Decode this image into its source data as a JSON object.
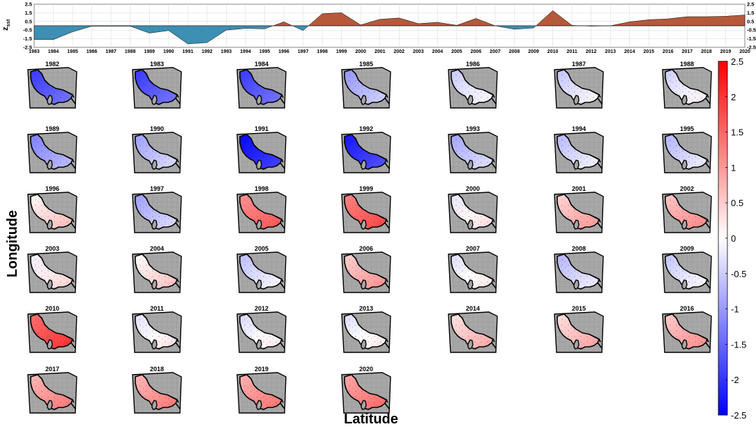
{
  "chart_data": [
    {
      "type": "area",
      "ylabel": "z",
      "ylabel_sub": "sst",
      "ylim": [
        -2.5,
        2.5
      ],
      "yticks": [
        2.5,
        1.5,
        0.5,
        -0.5,
        -1.5,
        -2.5
      ],
      "yticks_right": [
        2.5,
        1.5,
        0.5,
        -0.5,
        -1.5,
        -2.5
      ],
      "x_range": [
        1983,
        2020
      ],
      "x_ticks": [
        1983,
        1984,
        1985,
        1986,
        1987,
        1988,
        1989,
        1990,
        1991,
        1992,
        1993,
        1994,
        1995,
        1996,
        1997,
        1998,
        1999,
        2000,
        2001,
        2002,
        2003,
        2004,
        2005,
        2006,
        2007,
        2008,
        2009,
        2010,
        2011,
        2012,
        2013,
        2014,
        2015,
        2016,
        2017,
        2018,
        2019,
        2020
      ],
      "grid": true,
      "positive_color": "#b5593a",
      "negative_color": "#3d8fb3",
      "series": [
        {
          "name": "z_sst",
          "x": [
            1983,
            1984,
            1985,
            1986,
            1987,
            1988,
            1989,
            1990,
            1991,
            1992,
            1993,
            1994,
            1995,
            1996,
            1997,
            1998,
            1999,
            2000,
            2001,
            2002,
            2003,
            2004,
            2005,
            2006,
            2007,
            2008,
            2009,
            2010,
            2011,
            2012,
            2013,
            2014,
            2015,
            2016,
            2017,
            2018,
            2019,
            2020
          ],
          "values": [
            -1.6,
            -1.6,
            -0.7,
            -0.05,
            -0.05,
            -0.05,
            -0.85,
            -0.55,
            -2.1,
            -1.95,
            -0.5,
            -0.3,
            -0.35,
            0.45,
            -0.55,
            1.4,
            1.5,
            0.1,
            0.75,
            0.9,
            0.25,
            0.4,
            0.05,
            0.85,
            0.0,
            -0.4,
            -0.25,
            1.75,
            0.05,
            -0.05,
            0.0,
            0.45,
            0.7,
            0.8,
            1.05,
            1.05,
            1.1,
            1.25
          ]
        }
      ]
    },
    {
      "type": "heatmap",
      "title": "",
      "xlabel": "Latitude",
      "ylabel": "Longitude",
      "colorbar": {
        "ticks": [
          2.5,
          2,
          1.5,
          1,
          0.5,
          0,
          -0.5,
          -1,
          -1.5,
          -2,
          -2.5
        ],
        "tick_labels": [
          "2.5",
          "2",
          "1.5",
          "1",
          "0.5",
          "0",
          "-0.5",
          "-1",
          "-1.5",
          "-2",
          "-2.5"
        ],
        "range": [
          -2.5,
          2.5
        ],
        "colors": [
          "#0000ff",
          "#ffffff",
          "#ff0000"
        ]
      },
      "panels": [
        {
          "year": "1982",
          "value": -1.6
        },
        {
          "year": "1983",
          "value": -1.6
        },
        {
          "year": "1984",
          "value": -1.6
        },
        {
          "year": "1985",
          "value": -0.7
        },
        {
          "year": "1986",
          "value": -0.2
        },
        {
          "year": "1987",
          "value": -0.25
        },
        {
          "year": "1988",
          "value": -0.15
        },
        {
          "year": "1989",
          "value": -0.9
        },
        {
          "year": "1990",
          "value": -0.6
        },
        {
          "year": "1991",
          "value": -2.1
        },
        {
          "year": "1992",
          "value": -1.95
        },
        {
          "year": "1993",
          "value": -0.55
        },
        {
          "year": "1994",
          "value": -0.35
        },
        {
          "year": "1995",
          "value": -0.4
        },
        {
          "year": "1996",
          "value": 0.4
        },
        {
          "year": "1997",
          "value": -0.6
        },
        {
          "year": "1998",
          "value": 1.4
        },
        {
          "year": "1999",
          "value": 1.55
        },
        {
          "year": "2000",
          "value": 0.1
        },
        {
          "year": "2001",
          "value": 0.75
        },
        {
          "year": "2002",
          "value": 0.9
        },
        {
          "year": "2003",
          "value": 0.2
        },
        {
          "year": "2004",
          "value": 0.35
        },
        {
          "year": "2005",
          "value": -0.3
        },
        {
          "year": "2006",
          "value": 0.8
        },
        {
          "year": "2007",
          "value": 0.0
        },
        {
          "year": "2008",
          "value": -0.4
        },
        {
          "year": "2009",
          "value": -0.25
        },
        {
          "year": "2010",
          "value": 1.75
        },
        {
          "year": "2011",
          "value": 0.05
        },
        {
          "year": "2012",
          "value": -0.05
        },
        {
          "year": "2013",
          "value": 0.0
        },
        {
          "year": "2014",
          "value": 0.6
        },
        {
          "year": "2015",
          "value": 0.65
        },
        {
          "year": "2016",
          "value": 0.85
        },
        {
          "year": "2017",
          "value": 1.05
        },
        {
          "year": "2018",
          "value": 1.05
        },
        {
          "year": "2019",
          "value": 1.1
        },
        {
          "year": "2020",
          "value": 1.2
        }
      ]
    }
  ]
}
